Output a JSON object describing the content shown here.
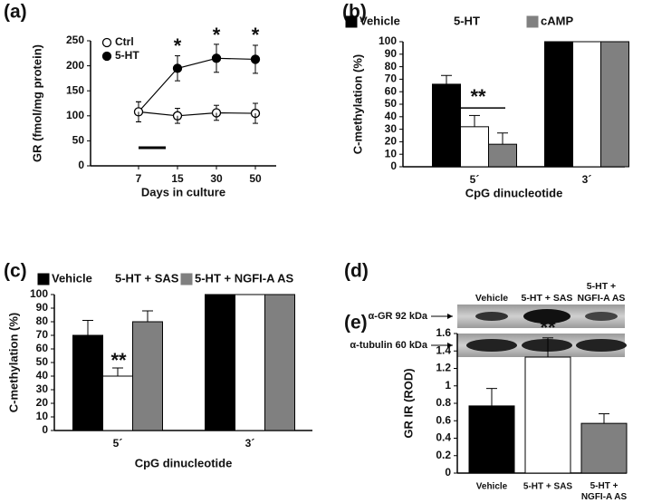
{
  "chart_data": [
    {
      "type": "line",
      "panel": "(a)",
      "x_label": "Days in culture",
      "y_label": "GR (fmol/mg protein)",
      "categories": [
        "7",
        "15",
        "30",
        "50"
      ],
      "series": [
        {
          "name": "Ctrl",
          "color": "#ffffff",
          "values": [
            108,
            100,
            106,
            105
          ],
          "errors": [
            20,
            15,
            15,
            20
          ]
        },
        {
          "name": "5-HT",
          "color": "#000000",
          "values": [
            108,
            195,
            215,
            213
          ],
          "errors": [
            20,
            25,
            28,
            28
          ]
        }
      ],
      "ylim": [
        0,
        250
      ],
      "yticks": [
        0,
        50,
        100,
        150,
        200,
        250
      ],
      "annotations": [
        "*",
        "*",
        "*"
      ]
    },
    {
      "type": "bar",
      "panel": "(b)",
      "x_label": "CpG dinucleotide",
      "y_label": "C-methylation (%)",
      "categories": [
        "5´",
        "3´"
      ],
      "series": [
        {
          "name": "Vehicle",
          "color": "#000000",
          "values": [
            66,
            100
          ],
          "errors": [
            7,
            0
          ]
        },
        {
          "name": "5-HT",
          "color": "#ffffff",
          "values": [
            32,
            100
          ],
          "errors": [
            9,
            0
          ]
        },
        {
          "name": "cAMP",
          "color": "#808080",
          "values": [
            18,
            100
          ],
          "errors": [
            9,
            0
          ]
        }
      ],
      "ylim": [
        0,
        100
      ],
      "yticks": [
        0,
        10,
        20,
        30,
        40,
        50,
        60,
        70,
        80,
        90,
        100
      ],
      "annotations": [
        "**"
      ]
    },
    {
      "type": "bar",
      "panel": "(c)",
      "x_label": "CpG dinucleotide",
      "y_label": "C-methylation (%)",
      "categories": [
        "5´",
        "3´"
      ],
      "series": [
        {
          "name": "Vehicle",
          "color": "#000000",
          "values": [
            70,
            100
          ],
          "errors": [
            11,
            0
          ]
        },
        {
          "name": "5-HT + SAS",
          "color": "#ffffff",
          "values": [
            40,
            100
          ],
          "errors": [
            6,
            0
          ]
        },
        {
          "name": "5-HT + NGFI-A  AS",
          "color": "#808080",
          "values": [
            80,
            100
          ],
          "errors": [
            8,
            0
          ]
        }
      ],
      "ylim": [
        0,
        100
      ],
      "yticks": [
        0,
        10,
        20,
        30,
        40,
        50,
        60,
        70,
        80,
        90,
        100
      ],
      "annotations": [
        "**"
      ]
    },
    {
      "type": "blot",
      "panel": "(d)",
      "columns": [
        "Vehicle",
        "5-HT + SAS",
        "5-HT + NGFI-A AS"
      ],
      "rows": [
        "α-GR 92 kDa",
        "α-tubulin 60 kDa"
      ]
    },
    {
      "type": "bar",
      "panel": "(e)",
      "y_label": "GR IR (ROD)",
      "categories": [
        "Vehicle",
        "5-HT + SAS",
        "5-HT + NGFI-A AS"
      ],
      "values": [
        0.77,
        1.33,
        0.57
      ],
      "errors": [
        0.2,
        0.22,
        0.11
      ],
      "colors": [
        "#000000",
        "#ffffff",
        "#808080"
      ],
      "ylim": [
        0,
        1.6
      ],
      "yticks": [
        0,
        0.2,
        0.4,
        0.6,
        0.8,
        1,
        1.2,
        1.4,
        1.6
      ],
      "annotations": [
        "**"
      ]
    }
  ]
}
